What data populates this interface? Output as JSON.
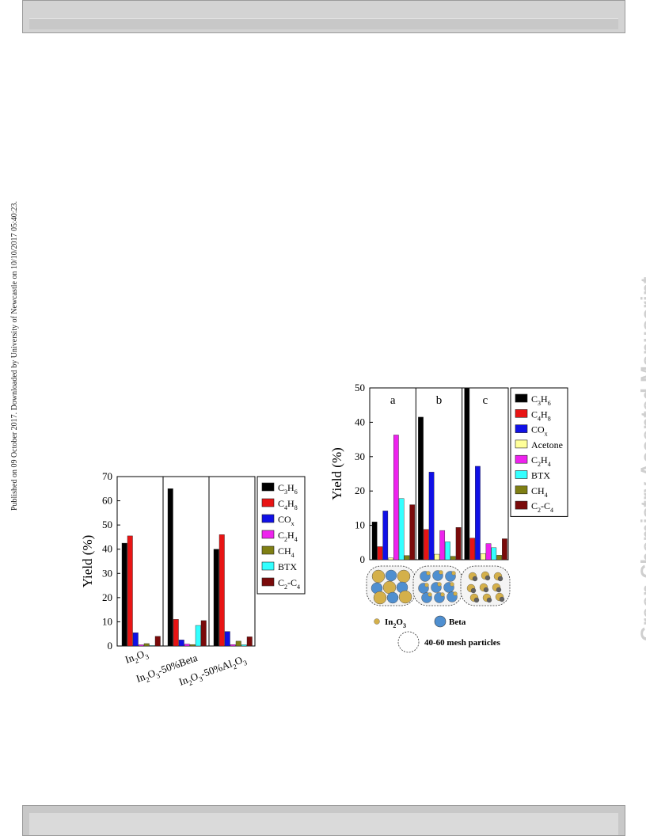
{
  "page": {
    "side_note": "Published on 09 October 2017. Downloaded by University of Newcastle on 10/10/2017 05:40:23.",
    "watermark": "Green Chemistry Accepted Manuscript"
  },
  "colors": {
    "C3H6": "#000000",
    "C4H8": "#e81414",
    "COx": "#1010e6",
    "Acetone": "#ffff99",
    "C2H4": "#ee22ee",
    "CH4": "#7f7f14",
    "BTX": "#33ffff",
    "C2-C4": "#7a0a0a",
    "In2O3_particle": "#d4b04a",
    "Beta_particle": "#4f8fd0"
  },
  "chart_data": [
    {
      "type": "bar",
      "ylabel": "Yield (%)",
      "ylim": [
        0,
        70
      ],
      "yticks": [
        "0",
        "10",
        "20",
        "30",
        "40",
        "50",
        "60",
        "70"
      ],
      "categories": [
        "In2O3",
        "In2O3-50%Beta",
        "In2O3-50%Al2O3"
      ],
      "category_labels": [
        {
          "base": "In",
          "sub1": "2",
          "mid": "O",
          "sub2": "3",
          "tail": ""
        },
        {
          "base": "In",
          "sub1": "2",
          "mid": "O",
          "sub2": "3",
          "tail": "-50%Beta"
        },
        {
          "base": "In",
          "sub1": "2",
          "mid": "O",
          "sub2": "3",
          "tail": "-50%Al",
          "sub3": "2",
          "tail2": "O",
          "sub4": "3"
        }
      ],
      "legend_position": "right",
      "series": [
        {
          "name": "C3H6",
          "label_parts": [
            "C",
            "3",
            "H",
            "6"
          ],
          "values": [
            42.5,
            65.0,
            40.0
          ]
        },
        {
          "name": "C4H8",
          "label_parts": [
            "C",
            "4",
            "H",
            "8"
          ],
          "values": [
            45.5,
            11.0,
            46.0
          ]
        },
        {
          "name": "COx",
          "label_parts": [
            "CO",
            "x"
          ],
          "values": [
            5.5,
            2.5,
            6.0
          ]
        },
        {
          "name": "C2H4",
          "label_parts": [
            "C",
            "2",
            "H",
            "4"
          ],
          "values": [
            0.5,
            0.8,
            0.6
          ]
        },
        {
          "name": "CH4",
          "label_parts": [
            "CH",
            "4"
          ],
          "values": [
            1.0,
            0.6,
            2.0
          ]
        },
        {
          "name": "BTX",
          "label_parts": [
            "BTX"
          ],
          "values": [
            0.2,
            8.5,
            0.5
          ]
        },
        {
          "name": "C2-C4",
          "label_parts": [
            "C",
            "2",
            "-C",
            "4"
          ],
          "values": [
            4.0,
            10.5,
            3.8
          ]
        }
      ]
    },
    {
      "type": "bar",
      "ylabel": "Yield (%)",
      "ylim": [
        0,
        50
      ],
      "yticks": [
        "0",
        "10",
        "20",
        "30",
        "40",
        "50"
      ],
      "categories": [
        "a",
        "b",
        "c"
      ],
      "legend_position": "right",
      "series": [
        {
          "name": "C3H6",
          "label_parts": [
            "C",
            "3",
            "H",
            "6"
          ],
          "values": [
            11.0,
            41.5,
            50.0
          ]
        },
        {
          "name": "C4H8",
          "label_parts": [
            "C",
            "4",
            "H",
            "8"
          ],
          "values": [
            3.8,
            8.8,
            6.3
          ]
        },
        {
          "name": "COx",
          "label_parts": [
            "CO",
            "x"
          ],
          "values": [
            14.2,
            25.5,
            27.2
          ]
        },
        {
          "name": "Acetone",
          "label_parts": [
            "Acetone"
          ],
          "values": [
            0.5,
            1.6,
            1.8
          ]
        },
        {
          "name": "C2H4",
          "label_parts": [
            "C",
            "2",
            "H",
            "4"
          ],
          "values": [
            36.3,
            8.5,
            4.7
          ]
        },
        {
          "name": "BTX",
          "label_parts": [
            "BTX"
          ],
          "values": [
            17.8,
            5.2,
            3.5
          ]
        },
        {
          "name": "CH4",
          "label_parts": [
            "CH",
            "4"
          ],
          "values": [
            1.2,
            1.0,
            1.3
          ]
        },
        {
          "name": "C2-C4",
          "label_parts": [
            "C",
            "2",
            "-C",
            "4"
          ],
          "values": [
            16.0,
            9.4,
            6.1
          ]
        }
      ],
      "illustration": {
        "in2o3_label": {
          "base": "In",
          "sub1": "2",
          "mid": "O",
          "sub2": "3"
        },
        "beta_label": "Beta",
        "mesh_label": "40-60 mesh particles"
      }
    }
  ]
}
